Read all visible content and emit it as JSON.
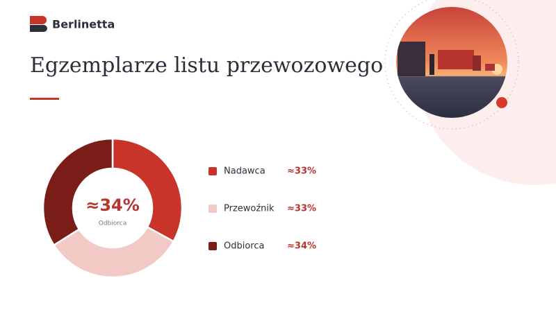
{
  "brand": "Berlinetta",
  "chart_data": {
    "type": "donut",
    "title": "Egzemplarze listu przewozowego",
    "categories": [
      "Nadawca",
      "Przewoźnik",
      "Odbiorca"
    ],
    "values": [
      33,
      33,
      34
    ],
    "value_labels": [
      "≈33%",
      "≈33%",
      "≈34%"
    ],
    "colors": [
      "#c8342a",
      "#f2c9c4",
      "#7a1d18"
    ],
    "center_label": "≈34%",
    "center_caption": "Odbiorca"
  }
}
